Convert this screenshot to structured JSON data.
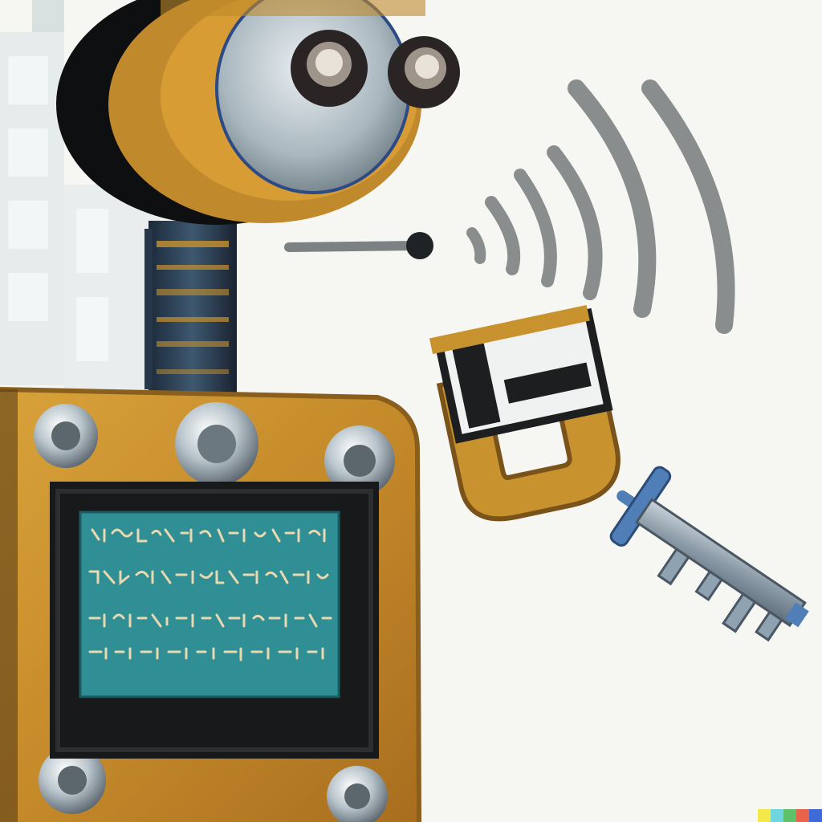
{
  "image": {
    "subject": "painted-robot-with-padlock-and-key",
    "palette": {
      "background": "#f6f6f3",
      "wall": "#dfe6e6",
      "ochre": "#c8922e",
      "ochre_dark": "#8a5e1c",
      "steel": "#9aa8b0",
      "steel_light": "#d6dde2",
      "screen": "#2f8f94",
      "screen_glyph": "#e8d9b0",
      "screen_frame": "#1b1b1c",
      "signal": "#8a8d8e",
      "key": "#8fa2b2",
      "key_blue": "#4f7fb6"
    },
    "icons": [
      "robot-head",
      "robot-eye",
      "robot-neck",
      "robot-body",
      "screen-glyphs",
      "wireless-signal-icon",
      "padlock-icon",
      "key-icon",
      "signature-stripe"
    ],
    "signature_colors": [
      "#f2e84a",
      "#6fd6e0",
      "#5fc26a",
      "#e8634a",
      "#3f6ad8"
    ]
  }
}
